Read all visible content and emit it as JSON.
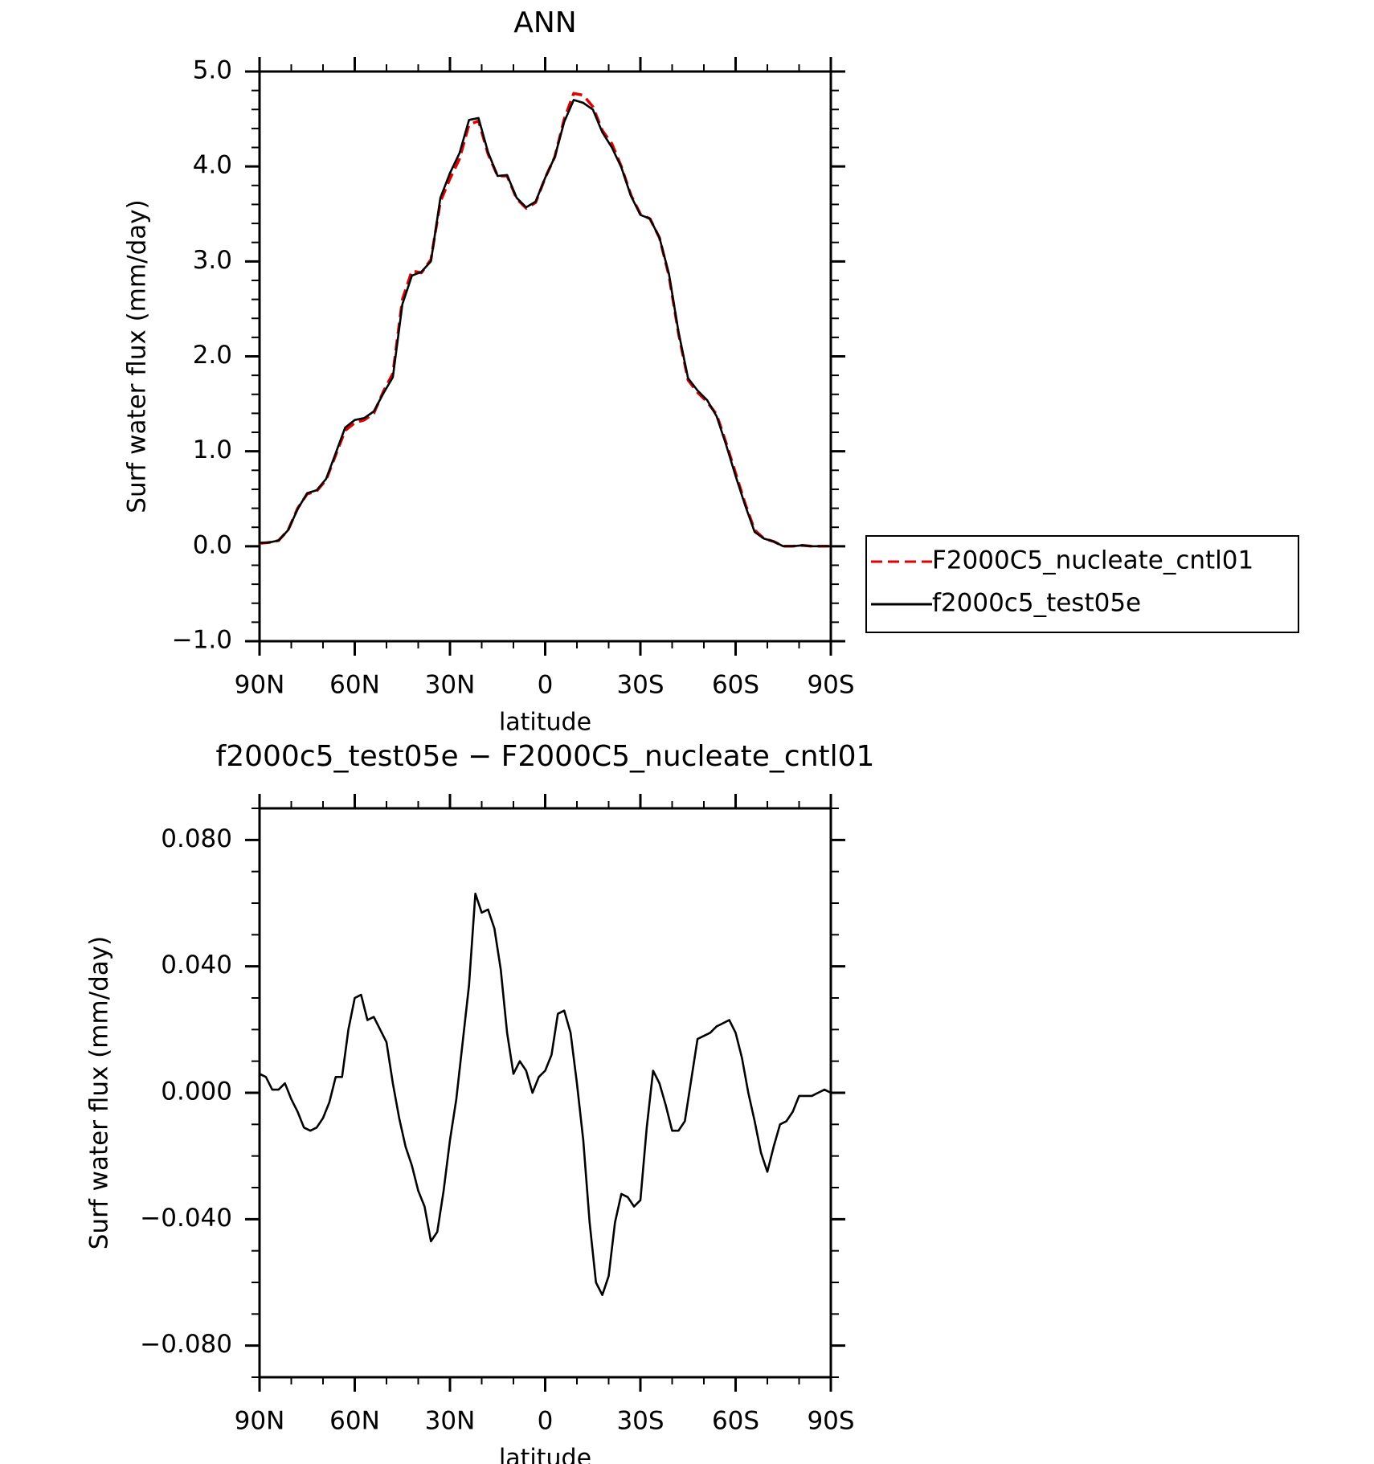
{
  "chart_data": [
    {
      "type": "line",
      "title": "ANN",
      "xlabel": "latitude",
      "ylabel": "Surf water flux (mm/day)",
      "xlim": [
        90,
        -90
      ],
      "ylim": [
        -1.0,
        5.0
      ],
      "x_ticks": [
        {
          "value": 90,
          "label": "90N"
        },
        {
          "value": 60,
          "label": "60N"
        },
        {
          "value": 30,
          "label": "30N"
        },
        {
          "value": 0,
          "label": "0"
        },
        {
          "value": -30,
          "label": "30S"
        },
        {
          "value": -60,
          "label": "60S"
        },
        {
          "value": -90,
          "label": "90S"
        }
      ],
      "y_ticks": [
        {
          "value": 5.0,
          "label": "5.0"
        },
        {
          "value": 4.0,
          "label": "4.0"
        },
        {
          "value": 3.0,
          "label": "3.0"
        },
        {
          "value": 2.0,
          "label": "2.0"
        },
        {
          "value": 1.0,
          "label": "1.0"
        },
        {
          "value": 0.0,
          "label": "0.0"
        },
        {
          "value": -1.0,
          "label": "−1.0"
        }
      ],
      "x": [
        90,
        87,
        84,
        81,
        78,
        75,
        72,
        69,
        66,
        63,
        60,
        57,
        54,
        51,
        48,
        45,
        42,
        39,
        36,
        33,
        30,
        27,
        24,
        21,
        18,
        15,
        12,
        9,
        6,
        3,
        0,
        -3,
        -6,
        -9,
        -12,
        -15,
        -18,
        -21,
        -24,
        -27,
        -30,
        -33,
        -36,
        -39,
        -42,
        -45,
        -48,
        -51,
        -54,
        -57,
        -60,
        -63,
        -66,
        -69,
        -72,
        -75,
        -78,
        -81,
        -84,
        -87,
        -90
      ],
      "series": [
        {
          "name": "F2000C5_nucleate_cntl01",
          "color": "#e00000",
          "dash": "dashed",
          "values": [
            0.03,
            0.04,
            0.06,
            0.17,
            0.4,
            0.55,
            0.58,
            0.7,
            0.96,
            1.22,
            1.3,
            1.33,
            1.4,
            1.63,
            1.82,
            2.6,
            2.9,
            2.88,
            3.02,
            3.63,
            3.87,
            4.08,
            4.44,
            4.48,
            4.13,
            3.9,
            3.9,
            3.66,
            3.56,
            3.62,
            3.88,
            4.1,
            4.5,
            4.77,
            4.75,
            4.63,
            4.38,
            4.24,
            4.0,
            3.7,
            3.5,
            3.45,
            3.25,
            2.85,
            2.24,
            1.75,
            1.62,
            1.52,
            1.39,
            1.09,
            0.77,
            0.45,
            0.17,
            0.08,
            0.05,
            0.0,
            0.0,
            0.01,
            0.0,
            0.0,
            0.0
          ]
        },
        {
          "name": "f2000c5_test05e",
          "color": "#000000",
          "dash": "solid",
          "values": [
            0.036,
            0.04,
            0.06,
            0.17,
            0.39,
            0.56,
            0.59,
            0.71,
            0.98,
            1.25,
            1.33,
            1.35,
            1.42,
            1.61,
            1.78,
            2.55,
            2.85,
            2.89,
            3.0,
            3.67,
            3.93,
            4.14,
            4.49,
            4.51,
            4.15,
            3.9,
            3.91,
            3.67,
            3.57,
            3.63,
            3.88,
            4.1,
            4.47,
            4.7,
            4.67,
            4.6,
            4.36,
            4.2,
            3.99,
            3.69,
            3.49,
            3.45,
            3.25,
            2.87,
            2.26,
            1.77,
            1.64,
            1.54,
            1.37,
            1.07,
            0.74,
            0.43,
            0.15,
            0.08,
            0.05,
            0.0,
            0.0,
            0.01,
            0.0,
            0.0,
            0.0
          ]
        }
      ],
      "legend": {
        "position": "right",
        "entries": [
          "F2000C5_nucleate_cntl01",
          "f2000c5_test05e"
        ]
      }
    },
    {
      "type": "line",
      "title": "f2000c5_test05e − F2000C5_nucleate_cntl01",
      "xlabel": "latitude",
      "ylabel": "Surf water flux (mm/day)",
      "xlim": [
        90,
        -90
      ],
      "ylim": [
        -0.09,
        0.09
      ],
      "x_ticks": [
        {
          "value": 90,
          "label": "90N"
        },
        {
          "value": 60,
          "label": "60N"
        },
        {
          "value": 30,
          "label": "30N"
        },
        {
          "value": 0,
          "label": "0"
        },
        {
          "value": -30,
          "label": "30S"
        },
        {
          "value": -60,
          "label": "60S"
        },
        {
          "value": -90,
          "label": "90S"
        }
      ],
      "y_ticks": [
        {
          "value": 0.08,
          "label": "0.080"
        },
        {
          "value": 0.04,
          "label": "0.040"
        },
        {
          "value": 0.0,
          "label": "0.000"
        },
        {
          "value": -0.04,
          "label": "−0.040"
        },
        {
          "value": -0.08,
          "label": "−0.080"
        }
      ],
      "x": [
        90,
        88,
        86,
        84,
        82,
        80,
        78,
        76,
        74,
        72,
        70,
        68,
        66,
        64,
        62,
        60,
        58,
        56,
        54,
        52,
        50,
        48,
        46,
        44,
        42,
        40,
        38,
        36,
        34,
        32,
        30,
        28,
        26,
        24,
        22,
        20,
        18,
        16,
        14,
        12,
        10,
        8,
        6,
        4,
        2,
        0,
        -2,
        -4,
        -6,
        -8,
        -10,
        -12,
        -14,
        -16,
        -18,
        -20,
        -22,
        -24,
        -26,
        -28,
        -30,
        -32,
        -34,
        -36,
        -38,
        -40,
        -42,
        -44,
        -46,
        -48,
        -50,
        -52,
        -54,
        -56,
        -58,
        -60,
        -62,
        -64,
        -66,
        -68,
        -70,
        -72,
        -74,
        -76,
        -78,
        -80,
        -82,
        -84,
        -86,
        -88,
        -90
      ],
      "series": [
        {
          "name": "",
          "color": "#000000",
          "dash": "solid",
          "values": [
            0.006,
            0.005,
            0.001,
            0.001,
            0.003,
            -0.002,
            -0.006,
            -0.011,
            -0.012,
            -0.011,
            -0.008,
            -0.003,
            0.005,
            0.005,
            0.02,
            0.03,
            0.031,
            0.023,
            0.024,
            0.02,
            0.016,
            0.003,
            -0.008,
            -0.017,
            -0.023,
            -0.031,
            -0.036,
            -0.047,
            -0.044,
            -0.031,
            -0.015,
            -0.002,
            0.016,
            0.034,
            0.063,
            0.057,
            0.058,
            0.052,
            0.039,
            0.019,
            0.006,
            0.01,
            0.007,
            0.0,
            0.005,
            0.007,
            0.012,
            0.025,
            0.026,
            0.019,
            0.003,
            -0.015,
            -0.041,
            -0.06,
            -0.064,
            -0.058,
            -0.041,
            -0.032,
            -0.033,
            -0.036,
            -0.034,
            -0.011,
            0.007,
            0.003,
            -0.004,
            -0.012,
            -0.012,
            -0.009,
            0.004,
            0.017,
            0.018,
            0.019,
            0.021,
            0.022,
            0.023,
            0.019,
            0.011,
            0.0,
            -0.009,
            -0.019,
            -0.025,
            -0.017,
            -0.01,
            -0.009,
            -0.006,
            -0.001,
            -0.001,
            -0.001,
            0.0,
            0.001,
            0.0
          ]
        }
      ]
    }
  ]
}
